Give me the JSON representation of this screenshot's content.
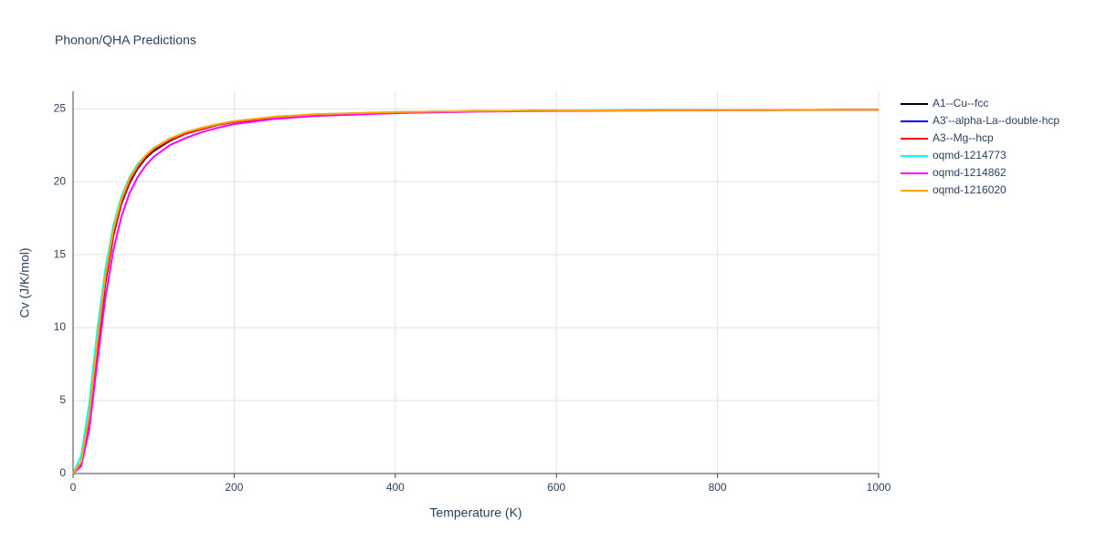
{
  "chart_data": {
    "type": "line",
    "title": "Phonon/QHA Predictions",
    "x_label": "Temperature (K)",
    "y_label": "Cv (J/K/mol)",
    "x": [
      0,
      10,
      20,
      30,
      40,
      50,
      60,
      70,
      80,
      90,
      100,
      120,
      140,
      160,
      180,
      200,
      250,
      300,
      400,
      500,
      600,
      800,
      1000
    ],
    "xlim": [
      0,
      1000
    ],
    "xticks": [
      0,
      200,
      400,
      600,
      800,
      1000
    ],
    "ylim": [
      0,
      26.2
    ],
    "yticks": [
      0,
      5,
      10,
      15,
      20,
      25
    ],
    "grid": true,
    "series": [
      {
        "name": "A1--Cu--fcc",
        "color": "#000000",
        "values": [
          0,
          0.6,
          3.5,
          8.5,
          13,
          16.3,
          18.5,
          19.9,
          20.9,
          21.6,
          22.1,
          22.8,
          23.3,
          23.6,
          23.9,
          24.1,
          24.4,
          24.6,
          24.75,
          24.83,
          24.87,
          24.91,
          24.93
        ]
      },
      {
        "name": "A3'--alpha-La--double-hcp",
        "color": "#0000ff",
        "values": [
          0,
          0.7,
          3.8,
          8.8,
          13.3,
          16.5,
          18.7,
          20.1,
          21.0,
          21.7,
          22.2,
          22.9,
          23.35,
          23.65,
          23.9,
          24.1,
          24.45,
          24.6,
          24.76,
          24.84,
          24.88,
          24.91,
          24.93
        ]
      },
      {
        "name": "A3--Mg--hcp",
        "color": "#ff0000",
        "values": [
          0,
          0.6,
          3.6,
          8.6,
          13.1,
          16.4,
          18.6,
          20.0,
          21.0,
          21.7,
          22.2,
          22.85,
          23.3,
          23.6,
          23.9,
          24.1,
          24.4,
          24.6,
          24.75,
          24.83,
          24.87,
          24.91,
          24.93
        ]
      },
      {
        "name": "oqmd-1214773",
        "color": "#00ffff",
        "values": [
          0,
          1.2,
          4.8,
          9.8,
          14.0,
          17.0,
          19.0,
          20.3,
          21.2,
          21.8,
          22.3,
          22.95,
          23.4,
          23.7,
          23.95,
          24.15,
          24.45,
          24.62,
          24.77,
          24.84,
          24.88,
          24.91,
          24.93
        ]
      },
      {
        "name": "oqmd-1214862",
        "color": "#ff00ff",
        "values": [
          0,
          0.5,
          3.0,
          7.6,
          12.0,
          15.3,
          17.6,
          19.2,
          20.3,
          21.1,
          21.7,
          22.5,
          23.0,
          23.4,
          23.7,
          23.95,
          24.3,
          24.5,
          24.7,
          24.8,
          24.85,
          24.9,
          24.92
        ]
      },
      {
        "name": "oqmd-1216020",
        "color": "#ffa500",
        "values": [
          0,
          0.8,
          4.0,
          9.0,
          13.5,
          16.7,
          18.8,
          20.2,
          21.1,
          21.8,
          22.3,
          22.95,
          23.4,
          23.7,
          23.95,
          24.15,
          24.45,
          24.62,
          24.77,
          24.84,
          24.88,
          24.91,
          24.93
        ]
      }
    ]
  }
}
